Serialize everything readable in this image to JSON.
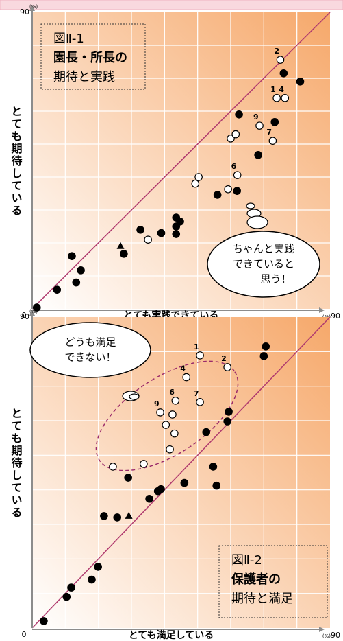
{
  "chart_data": [
    {
      "type": "scatter",
      "figure_label": "図Ⅱ-1",
      "title": "園長・所長の",
      "subtitle": "期待と実践",
      "xlabel": "とても実践できている",
      "ylabel": "とても期待している",
      "unit": "(%)",
      "xlim": [
        0,
        90
      ],
      "ylim": [
        0,
        90
      ],
      "xticks": [
        0,
        90
      ],
      "yticks": [
        90
      ],
      "grid_ticks": [
        10,
        20,
        30,
        40,
        50,
        60,
        70,
        80
      ],
      "diagonal": true,
      "diagonal_color": "#b03a6e",
      "gradient": [
        "#ffffff",
        "#f6a86a"
      ],
      "callout": [
        "ちゃんと実践",
        "できていると",
        "思う！"
      ],
      "series": [
        {
          "marker": "filled",
          "color": "#000000",
          "x": [
            1.4,
            7.5,
            12,
            13.3,
            14.7,
            27.7,
            32.7,
            39,
            43.5,
            44.7,
            43.5,
            43.5,
            56,
            61.9,
            68.3,
            62.5,
            73.3,
            76,
            81
          ],
          "values": [
            0.4,
            5.8,
            16,
            8,
            11.7,
            16.7,
            24,
            23,
            27.7,
            26.5,
            25,
            22.7,
            34.6,
            35.8,
            46.7,
            59,
            56.7,
            71.5,
            69
          ]
        },
        {
          "marker": "triangle",
          "color": "#000000",
          "x": [
            26.7
          ],
          "values": [
            19
          ]
        },
        {
          "marker": "open",
          "color": "#000000",
          "x": [
            35,
            49.3,
            50.3,
            59.2,
            62,
            60,
            61.5,
            68.7,
            72.7,
            73.9,
            76.4,
            75
          ],
          "values": [
            21,
            38,
            40,
            36.3,
            40.6,
            51.7,
            53,
            55.6,
            51,
            64,
            64,
            75.6
          ],
          "point_labels": [
            null,
            null,
            null,
            null,
            "6",
            null,
            null,
            "9",
            "7",
            "1",
            "4",
            "2"
          ]
        }
      ]
    },
    {
      "type": "scatter",
      "figure_label": "図Ⅱ-2",
      "title": "保護者の",
      "subtitle": "期待と満足",
      "xlabel": "とても満足している",
      "ylabel": "とても期待している",
      "unit": "(%)",
      "xlim": [
        0,
        90
      ],
      "ylim": [
        0,
        90
      ],
      "xticks": [
        0,
        90
      ],
      "yticks": [
        90
      ],
      "grid_ticks": [
        10,
        20,
        30,
        40,
        50,
        60,
        70,
        80
      ],
      "diagonal": true,
      "diagonal_color": "#b03a6e",
      "gradient": [
        "#ffffff",
        "#f6a86a"
      ],
      "callout": [
        "どうも満足",
        "できない！"
      ],
      "series": [
        {
          "marker": "filled",
          "color": "#000000",
          "x": [
            3.5,
            10.4,
            11.8,
            18,
            19.9,
            21.7,
            25.7,
            29,
            35.4,
            38,
            38.9,
            46,
            52.6,
            54.7,
            55.7,
            59,
            59.4,
            70,
            70.6
          ],
          "values": [
            2,
            9,
            11.7,
            14,
            17.7,
            32.4,
            32,
            43.5,
            37.4,
            39.6,
            40.2,
            42,
            56.7,
            46.7,
            41.2,
            59.8,
            62.6,
            78.7,
            81.5
          ]
        },
        {
          "marker": "triangle",
          "color": "#000000",
          "x": [
            29.2
          ],
          "values": [
            32.4
          ]
        },
        {
          "marker": "open",
          "color": "#000000",
          "x": [
            24.4,
            33.7,
            41.6,
            43,
            40.4,
            42.4,
            38.7,
            43.3,
            50.7,
            46.6,
            50.7,
            59
          ],
          "values": [
            46.7,
            47.5,
            51.7,
            56.3,
            58.8,
            61.8,
            62.4,
            65.8,
            65.4,
            72.6,
            78.9,
            75.5
          ],
          "point_labels": [
            null,
            null,
            null,
            null,
            null,
            null,
            "9",
            "6",
            "7",
            "4",
            "1",
            "2"
          ]
        }
      ]
    }
  ]
}
